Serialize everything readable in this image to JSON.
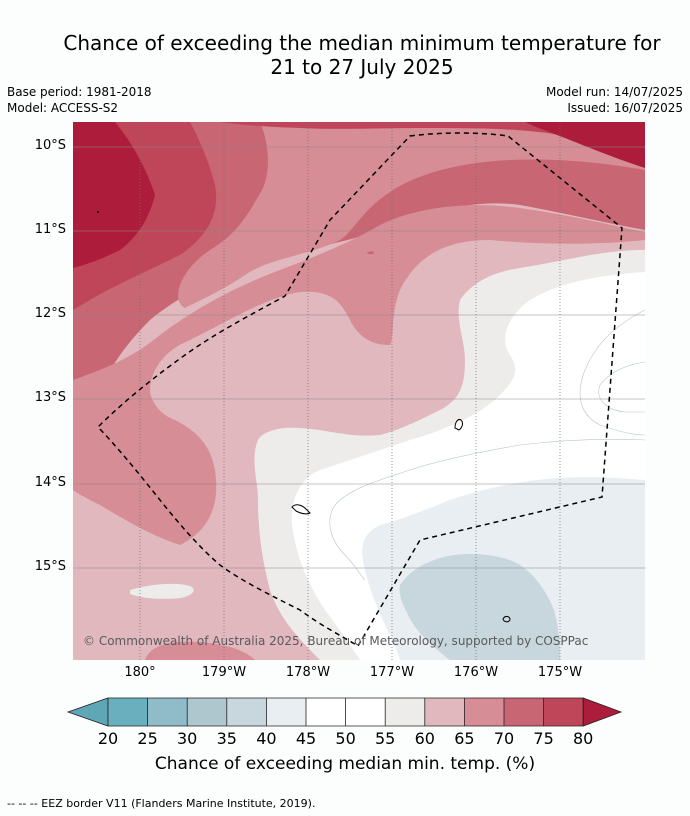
{
  "title": {
    "line1": "Chance of exceeding the median minimum temperature for",
    "line2": "21 to 27 July 2025"
  },
  "meta": {
    "base_period": "Base period: 1981-2018",
    "model": "Model: ACCESS-S2",
    "model_run": "Model run: 14/07/2025",
    "issued": "Issued: 16/07/2025"
  },
  "map": {
    "lat_labels": [
      "10°S",
      "11°S",
      "12°S",
      "13°S",
      "14°S",
      "15°S"
    ],
    "lon_labels": [
      "180°",
      "179°W",
      "178°W",
      "177°W",
      "176°W",
      "175°W"
    ],
    "copyright": "© Commonwealth of Australia 2025, Bureau of Meteorology, supported by COSPPac"
  },
  "colorbar": {
    "ticks": [
      "20",
      "25",
      "30",
      "35",
      "40",
      "45",
      "50",
      "55",
      "60",
      "65",
      "70",
      "75",
      "80"
    ],
    "colors": [
      "#5fa7b6",
      "#6aafbd",
      "#8fbcc8",
      "#aec7ce",
      "#c8d7de",
      "#e8eef2",
      "#ffffff",
      "#ffffff",
      "#eeeceb",
      "#e2b8bf",
      "#d68d96",
      "#c96674",
      "#bf4659",
      "#ad1c3b"
    ],
    "label": "Chance of exceeding median min. temp. (%)"
  },
  "footnote": "--  --  -- EEZ border V11 (Flanders Marine Institute, 2019)."
}
